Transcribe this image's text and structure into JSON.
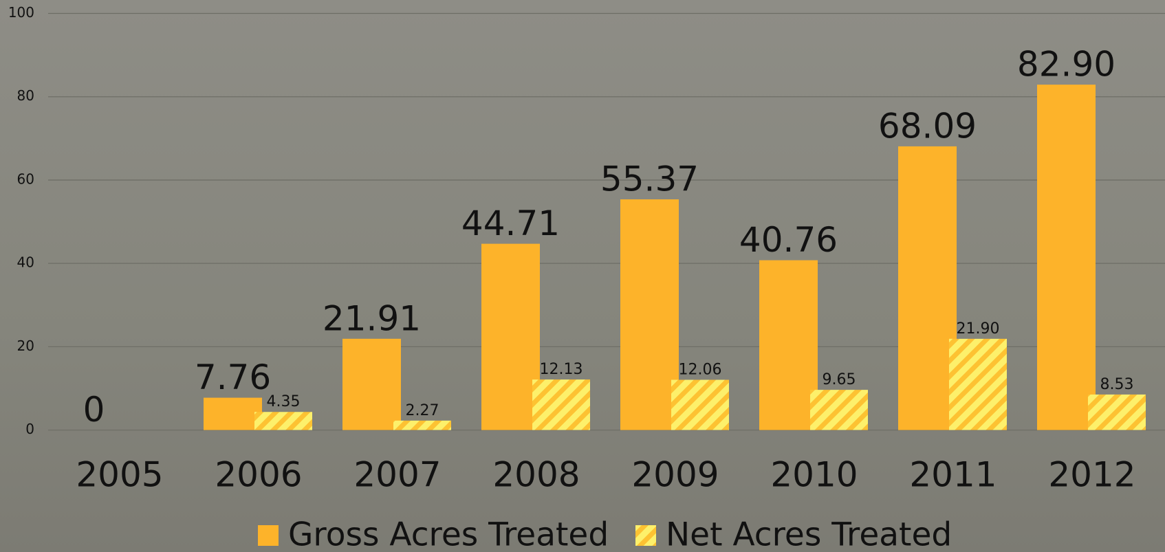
{
  "chart_data": {
    "type": "bar",
    "categories": [
      "2005",
      "2006",
      "2007",
      "2008",
      "2009",
      "2010",
      "2011",
      "2012"
    ],
    "series": [
      {
        "name": "Gross Acres Treated",
        "color": "#fdb32a",
        "values": [
          0,
          7.76,
          21.91,
          44.71,
          55.37,
          40.76,
          68.09,
          82.9
        ],
        "value_labels": [
          "0",
          "7.76",
          "21.91",
          "44.71",
          "55.37",
          "40.76",
          "68.09",
          "82.90"
        ]
      },
      {
        "name": "Net Acres Treated",
        "color": "#fdf06b",
        "values": [
          null,
          4.35,
          2.27,
          12.13,
          12.06,
          9.65,
          21.9,
          8.53
        ],
        "value_labels": [
          null,
          "4.35",
          "2.27",
          "12.13",
          "12.06",
          "9.65",
          "21.90",
          "8.53"
        ]
      }
    ],
    "ylim": [
      0,
      100
    ],
    "yticks": [
      0,
      20,
      40,
      60,
      80,
      100
    ],
    "grid": true
  }
}
